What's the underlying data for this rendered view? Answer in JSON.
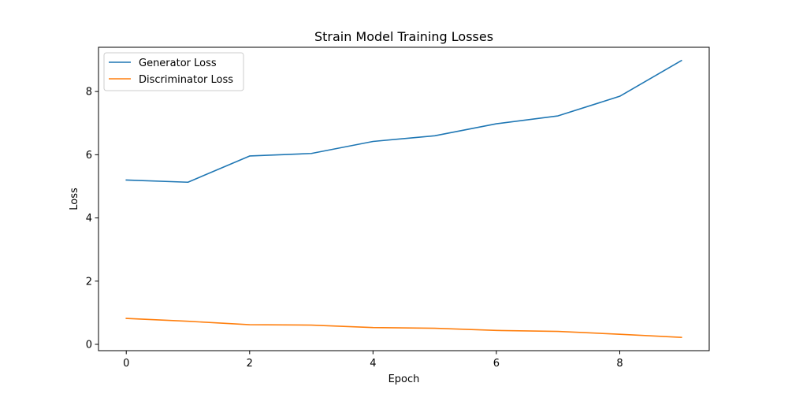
{
  "chart_data": {
    "type": "line",
    "title": "Strain Model Training Losses",
    "xlabel": "Epoch",
    "ylabel": "Loss",
    "x": [
      0,
      1,
      2,
      3,
      4,
      5,
      6,
      7,
      8,
      9
    ],
    "xlim": [
      -0.45,
      9.45
    ],
    "ylim": [
      -0.2,
      9.4
    ],
    "xticks": [
      0,
      2,
      4,
      6,
      8
    ],
    "yticks": [
      0,
      2,
      4,
      6,
      8
    ],
    "grid": false,
    "legend_position": "top-left",
    "series": [
      {
        "name": "Generator Loss",
        "color": "#1f77b4",
        "values": [
          5.2,
          5.13,
          5.96,
          6.04,
          6.42,
          6.6,
          6.98,
          7.23,
          7.85,
          8.98
        ]
      },
      {
        "name": "Discriminator Loss",
        "color": "#ff7f0e",
        "values": [
          0.82,
          0.73,
          0.62,
          0.61,
          0.53,
          0.51,
          0.44,
          0.41,
          0.32,
          0.22
        ]
      }
    ]
  }
}
